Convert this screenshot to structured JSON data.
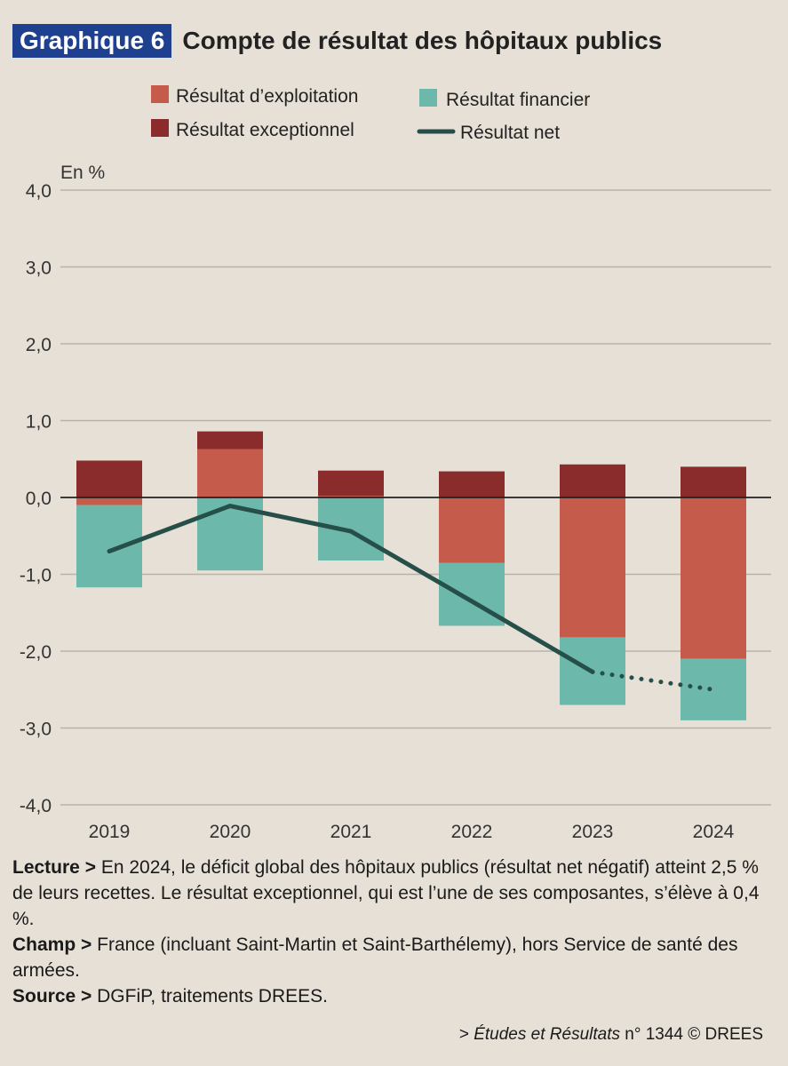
{
  "header": {
    "tag": "Graphique 6",
    "title": "Compte de résultat des hôpitaux publics"
  },
  "colors": {
    "exploitation": "#c45b4b",
    "financier": "#6cb8ab",
    "exceptionnel": "#8a2c2c",
    "net": "#274f4a",
    "grid": "#b8b2a8",
    "zero": "#222222",
    "title_tag_bg": "#1f3f8f"
  },
  "chart_data": {
    "type": "bar",
    "stacked": true,
    "unit_label": "En %",
    "categories": [
      "2019",
      "2020",
      "2021",
      "2022",
      "2023",
      "2024"
    ],
    "ylim": [
      -4.0,
      4.0
    ],
    "yticks": [
      "4,0",
      "3,0",
      "2,0",
      "1,0",
      "0,0",
      "-1,0",
      "-2,0",
      "-3,0",
      "-4,0"
    ],
    "ytick_values": [
      4,
      3,
      2,
      1,
      0,
      -1,
      -2,
      -3,
      -4
    ],
    "grid": true,
    "series": [
      {
        "name": "Résultat d’exploitation",
        "key": "exploitation",
        "values": [
          -0.1,
          0.63,
          0.02,
          -0.85,
          -1.82,
          -2.1
        ]
      },
      {
        "name": "Résultat financier",
        "key": "financier",
        "values": [
          -1.07,
          -0.95,
          -0.82,
          -0.82,
          -0.88,
          -0.8
        ]
      },
      {
        "name": "Résultat exceptionnel",
        "key": "exceptionnel",
        "values": [
          0.48,
          0.23,
          0.33,
          0.34,
          0.43,
          0.4
        ]
      }
    ],
    "line": {
      "name": "Résultat net",
      "values": [
        -0.7,
        -0.11,
        -0.44,
        -1.35,
        -2.27,
        -2.5
      ],
      "dotted_from_index": 4
    }
  },
  "legend": {
    "exploitation": "Résultat d’exploitation",
    "financier": "Résultat financier",
    "exceptionnel": "Résultat exceptionnel",
    "net": "Résultat net"
  },
  "notes": {
    "lecture_label": "Lecture >",
    "lecture_text": "En 2024, le déficit global des hôpitaux publics (résultat net négatif) atteint 2,5 % de leurs recettes. Le résultat exceptionnel, qui est l’une de ses composantes, s’élève à 0,4 %.",
    "champ_label": "Champ >",
    "champ_text": "France (incluant Saint-Martin et Saint-Barthélemy), hors Service de santé des armées.",
    "source_label": "Source >",
    "source_text": "DGFiP, traitements DREES."
  },
  "credit": {
    "prefix": ">",
    "publication": "Études et Résultats",
    "rest": "n° 1344 © DREES"
  }
}
